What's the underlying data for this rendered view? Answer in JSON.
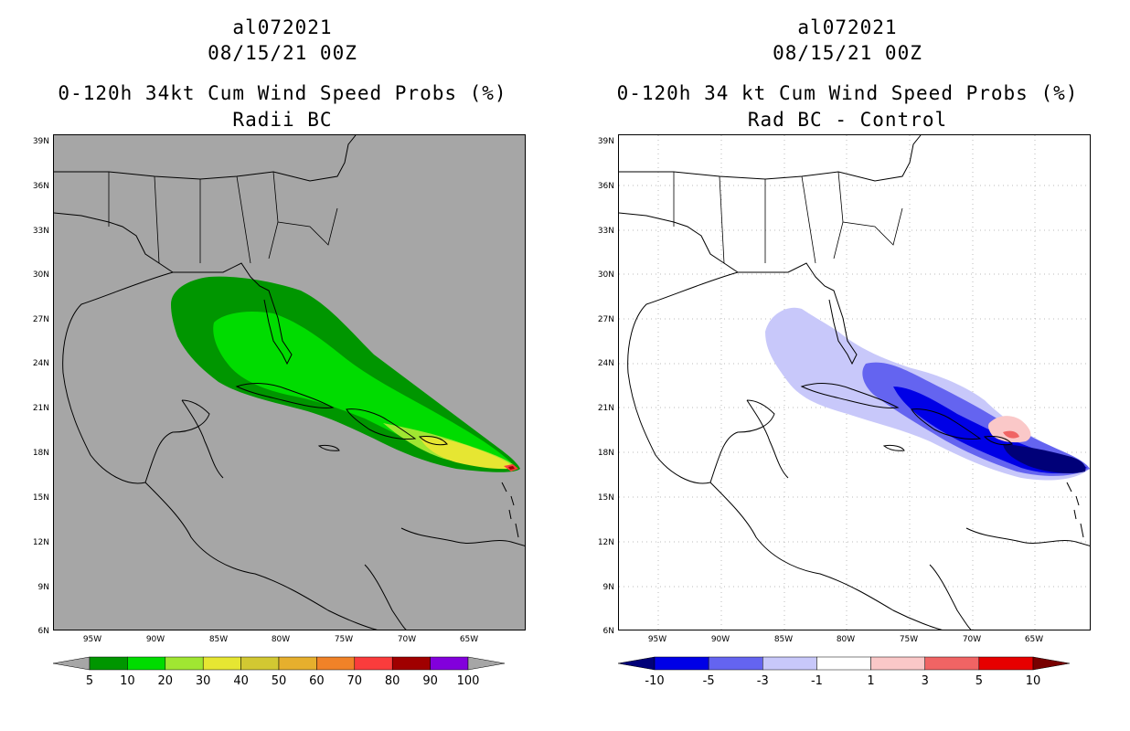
{
  "left": {
    "title_line1": "al072021",
    "title_line2": "08/15/21 00Z",
    "title_line3": "0-120h 34kt Cum Wind Speed Probs (%)",
    "title_line4": "Radii BC",
    "background_color": "#a6a6a6",
    "colorbar": {
      "labels": [
        "5",
        "10",
        "20",
        "30",
        "40",
        "50",
        "60",
        "70",
        "80",
        "90",
        "100"
      ],
      "colors": [
        "#009600",
        "#00dc00",
        "#a0e632",
        "#e6e632",
        "#d2c832",
        "#e6af2d",
        "#f08228",
        "#fa3c3c",
        "#a00000",
        "#8200dc"
      ],
      "end_arrow_color": "#a6a6a6"
    }
  },
  "right": {
    "title_line1": "al072021",
    "title_line2": "08/15/21 00Z",
    "title_line3": "0-120h 34 kt Cum Wind Speed Probs (%)",
    "title_line4": "Rad BC - Control",
    "background_color": "#ffffff",
    "colorbar": {
      "labels": [
        "-10",
        "-5",
        "-3",
        "-1",
        "1",
        "3",
        "5",
        "10"
      ],
      "colors": [
        "#0000e6",
        "#6464f0",
        "#c8c8fa",
        "#ffffff",
        "#fac8c8",
        "#f06464",
        "#e60000"
      ],
      "low_arrow_color": "#000078",
      "high_arrow_color": "#780000"
    }
  },
  "axes": {
    "lat_labels": [
      "39N",
      "36N",
      "33N",
      "30N",
      "27N",
      "24N",
      "21N",
      "18N",
      "15N",
      "12N",
      "9N",
      "6N"
    ],
    "lon_labels": [
      "95W",
      "90W",
      "85W",
      "80W",
      "75W",
      "70W",
      "65W"
    ],
    "lat_values": [
      39,
      36,
      33,
      30,
      27,
      24,
      21,
      18,
      15,
      12,
      9,
      6
    ],
    "lon_values": [
      95,
      90,
      85,
      80,
      75,
      70,
      65
    ],
    "lat_range": [
      6,
      39.5
    ],
    "lon_range": [
      98.5,
      60.8
    ]
  }
}
